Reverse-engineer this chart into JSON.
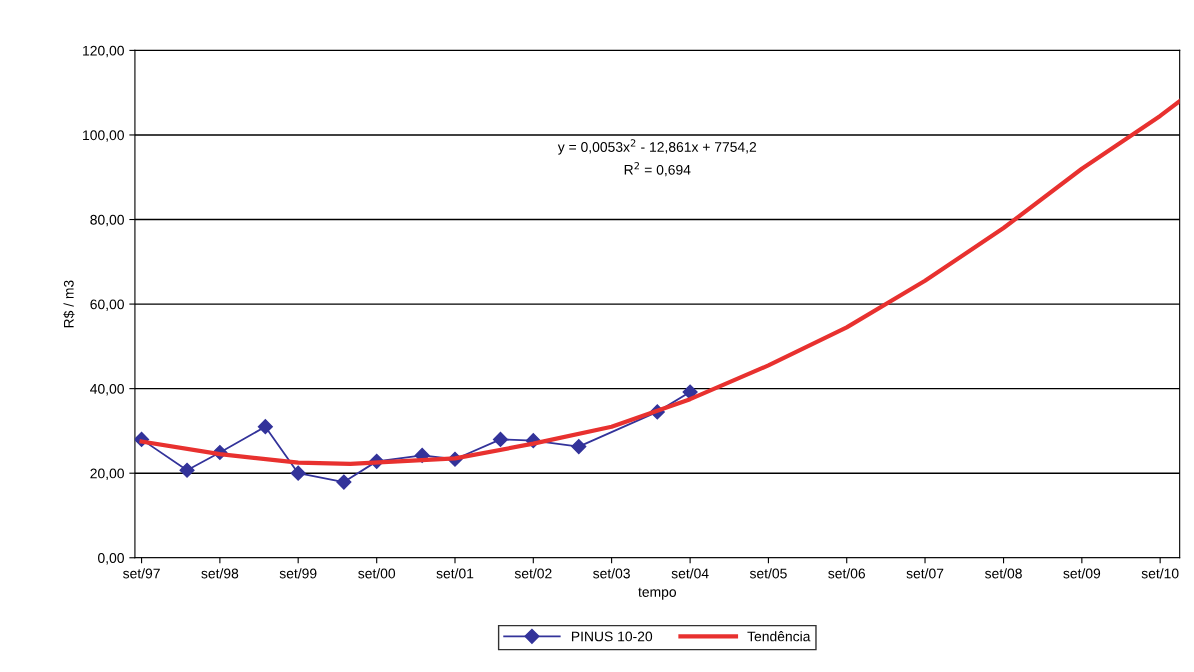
{
  "chart_data": {
    "type": "line",
    "xlabel": "tempo",
    "ylabel": "R$ / m3",
    "series": [
      {
        "name": "PINUS 10-20",
        "color": "#33339a",
        "marker": "diamond",
        "x": [
          "1997-09",
          "1998-04",
          "1998-09",
          "1999-04",
          "1999-09",
          "2000-04",
          "2000-09",
          "2001-04",
          "2001-09",
          "2002-04",
          "2002-09",
          "2003-04",
          "2004-04",
          "2004-09"
        ],
        "values": [
          28.0,
          20.7,
          24.9,
          31.0,
          20.0,
          17.9,
          22.8,
          24.2,
          23.3,
          28.0,
          27.7,
          26.3,
          34.5,
          39.2
        ]
      },
      {
        "name": "Tendência",
        "color": "#e8312f",
        "marker": "none",
        "x": [
          "1997-09",
          "1998-09",
          "1999-09",
          "2000-05",
          "2001-09",
          "2002-09",
          "2003-09",
          "2004-09",
          "2005-09",
          "2006-09",
          "2007-09",
          "2008-09",
          "2009-09",
          "2010-09",
          "2010-12"
        ],
        "values": [
          27.5,
          24.5,
          22.5,
          22.2,
          23.5,
          27.0,
          31.0,
          37.5,
          45.5,
          54.5,
          65.5,
          78.0,
          92.0,
          104.5,
          108.0
        ]
      }
    ],
    "xlim": [
      "1997-08",
      "2010-12"
    ],
    "xticks": [
      {
        "value": "1997-09",
        "label": "set/97"
      },
      {
        "value": "1998-09",
        "label": "set/98"
      },
      {
        "value": "1999-09",
        "label": "set/99"
      },
      {
        "value": "2000-09",
        "label": "set/00"
      },
      {
        "value": "2001-09",
        "label": "set/01"
      },
      {
        "value": "2002-09",
        "label": "set/02"
      },
      {
        "value": "2003-09",
        "label": "set/03"
      },
      {
        "value": "2004-09",
        "label": "set/04"
      },
      {
        "value": "2005-09",
        "label": "set/05"
      },
      {
        "value": "2006-09",
        "label": "set/06"
      },
      {
        "value": "2007-09",
        "label": "set/07"
      },
      {
        "value": "2008-09",
        "label": "set/08"
      },
      {
        "value": "2009-09",
        "label": "set/09"
      },
      {
        "value": "2010-09",
        "label": "set/10"
      }
    ],
    "ylim": [
      0,
      120
    ],
    "yticks": [
      {
        "value": 0,
        "label": "0,00"
      },
      {
        "value": 20,
        "label": "20,00"
      },
      {
        "value": 40,
        "label": "40,00"
      },
      {
        "value": 60,
        "label": "60,00"
      },
      {
        "value": 80,
        "label": "80,00"
      },
      {
        "value": 100,
        "label": "100,00"
      },
      {
        "value": 120,
        "label": "120,00"
      }
    ],
    "grid": "y",
    "legend": "bottom",
    "annotations": [
      "y = 0,0053x$^{2}$ - 12,861x + 7754,2",
      "R$^{2}$ = 0,694"
    ]
  }
}
